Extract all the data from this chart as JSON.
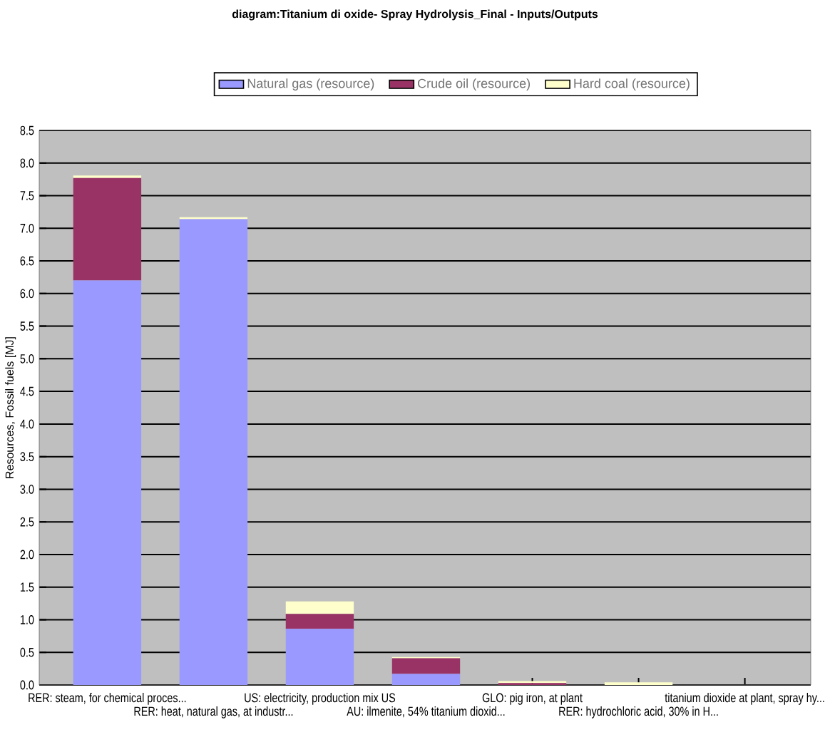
{
  "chart_data": {
    "type": "bar",
    "stacked": true,
    "title": "diagram:Titanium di oxide- Spray Hydrolysis_Final - Inputs/Outputs",
    "ylabel": "Resources, Fossil fuels [MJ]",
    "categories": [
      "RER: steam, for chemical proces...",
      "RER: heat, natural gas, at industr...",
      "US: electricity, production mix US",
      "AU: ilmenite, 54% titanium dioxid...",
      "GLO: pig iron, at plant",
      "RER: hydrochloric acid, 30% in H...",
      "titanium dioxide at plant, spray hy..."
    ],
    "series": [
      {
        "name": "Natural gas (resource)",
        "color": "#9999ff",
        "values": [
          6.2,
          7.14,
          0.86,
          0.17,
          0,
          0,
          0
        ]
      },
      {
        "name": "Crude oil (resource)",
        "color": "#993366",
        "values": [
          1.57,
          0,
          0.23,
          0.24,
          0.03,
          0,
          0
        ]
      },
      {
        "name": "Hard coal (resource)",
        "color": "#ffffcc",
        "values": [
          0.04,
          0.03,
          0.19,
          0.02,
          0.03,
          0.04,
          0
        ]
      }
    ],
    "ylim": [
      0,
      8.5
    ],
    "yticks": [
      {
        "value": 0,
        "label": "0.0"
      },
      0.5,
      {
        "value": 1,
        "label": "1.0"
      },
      1.5,
      {
        "value": 2,
        "label": "2.0"
      },
      2.5,
      {
        "value": 3,
        "label": "3.0"
      },
      3.5,
      {
        "value": 4,
        "label": "4.0"
      },
      4.5,
      {
        "value": 5,
        "label": "5.0"
      },
      5.5,
      {
        "value": 6,
        "label": "6.0"
      },
      6.5,
      {
        "value": 7,
        "label": "7.0"
      },
      7.5,
      {
        "value": 8,
        "label": "8.0"
      },
      8.5
    ],
    "grid": "y",
    "legend": "top"
  }
}
